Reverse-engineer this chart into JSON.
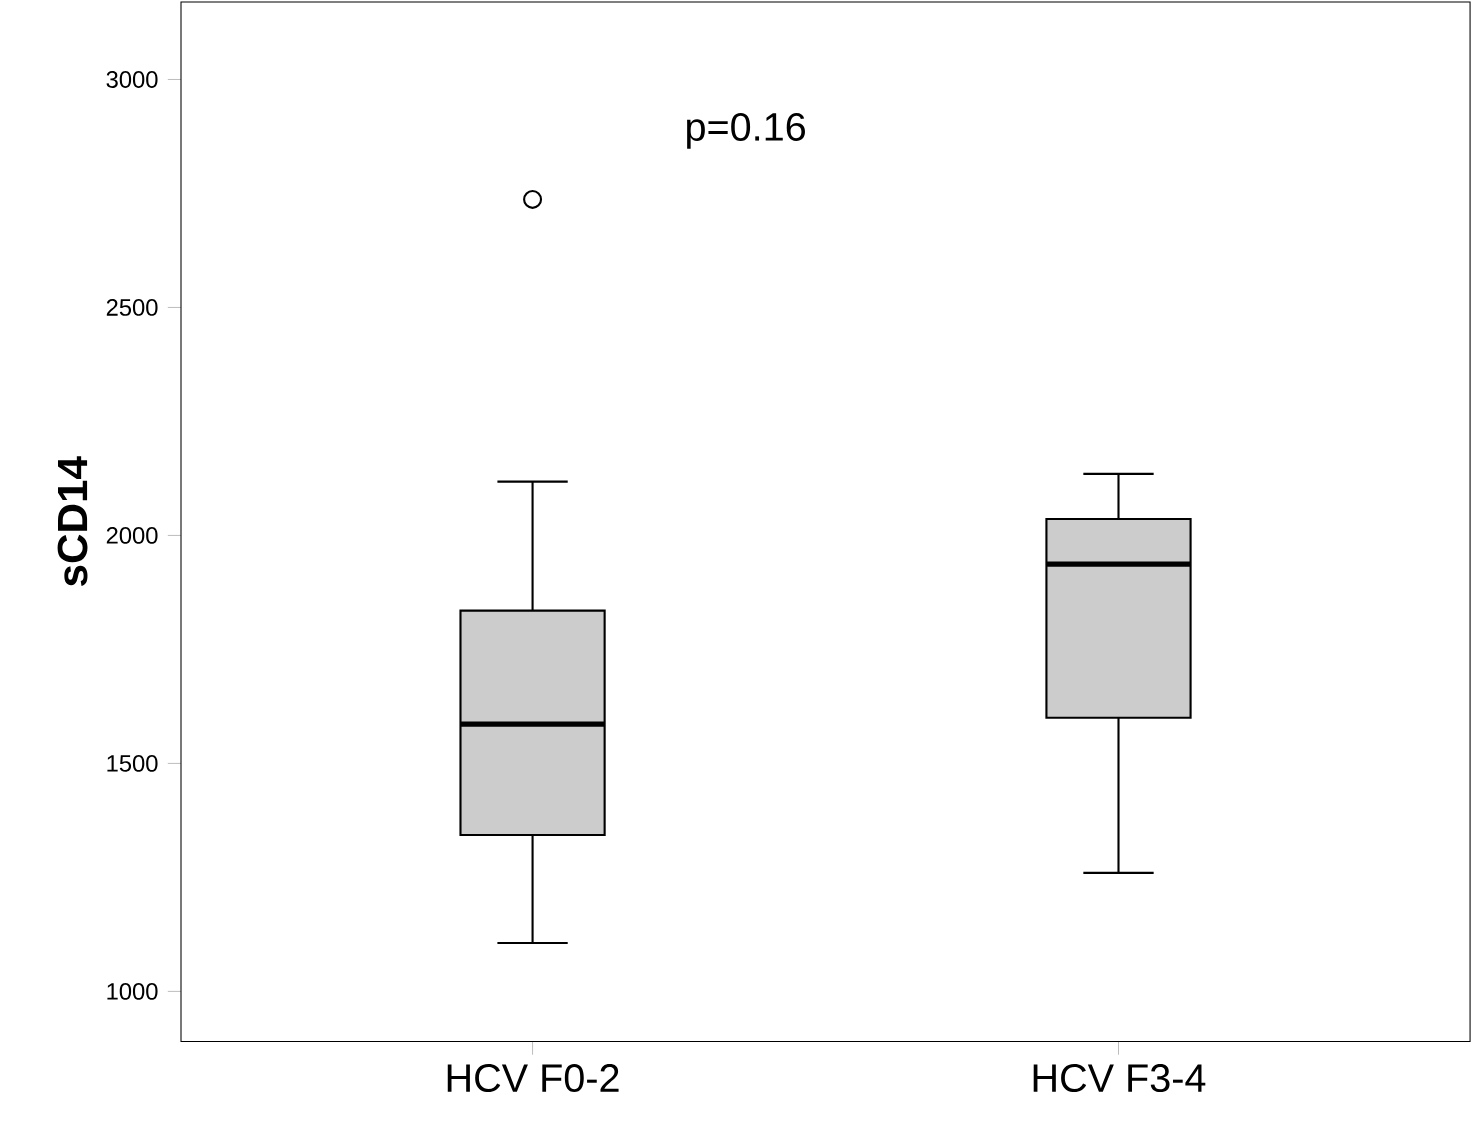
{
  "chart_data": {
    "type": "box",
    "categories": [
      "HCV F0-2",
      "HCV F3-4"
    ],
    "ylabel": "sCD14",
    "ylim": [
      890,
      3170
    ],
    "yticks": [
      1000,
      1500,
      2000,
      2500,
      3000
    ],
    "annotations": [
      "p=0.16"
    ],
    "series": [
      {
        "color": "#cccccc",
        "boxes": [
          {
            "low": 1106,
            "q1": 1343,
            "median": 1586,
            "q3": 1835,
            "high": 2118,
            "outliers": [
              2737
            ]
          },
          {
            "low": 1260,
            "q1": 1600,
            "median": 1937,
            "q3": 2036,
            "high": 2135
          }
        ]
      }
    ]
  }
}
